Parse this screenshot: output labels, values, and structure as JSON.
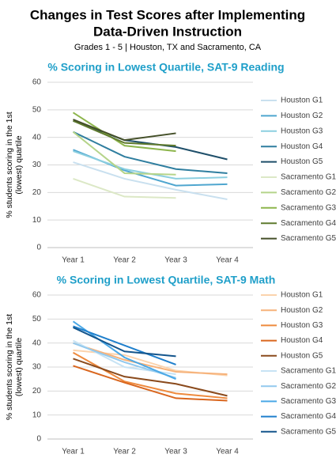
{
  "title": [
    "Changes in Test Scores after Implementing",
    "Data-Driven Instruction"
  ],
  "subtitle": "Grades 1 - 5 | Houston, TX and Sacramento, CA",
  "chart_data": [
    {
      "type": "line",
      "title": "% Scoring in Lowest Quartile, SAT-9 Reading",
      "y_label": [
        "% students scoring in the 1st",
        "(lowest) quartile"
      ],
      "categories": [
        "Year 1",
        "Year 2",
        "Year 3",
        "Year 4"
      ],
      "ylim": [
        0,
        60
      ],
      "yticks": [
        0,
        10,
        20,
        30,
        40,
        50,
        60
      ],
      "grid": true,
      "legend": "right",
      "series": [
        {
          "name": "Houston G1",
          "color": "#c9e0ef",
          "values": [
            31,
            25,
            21,
            17.5
          ]
        },
        {
          "name": "Houston G2",
          "color": "#4fa6cf",
          "values": [
            35.5,
            28,
            22.5,
            23
          ]
        },
        {
          "name": "Houston G3",
          "color": "#8ccfe0",
          "values": [
            35,
            28.5,
            25,
            25.5
          ]
        },
        {
          "name": "Houston G4",
          "color": "#2f7e9f",
          "values": [
            42,
            33,
            28.5,
            27
          ]
        },
        {
          "name": "Houston G5",
          "color": "#1f4f6a",
          "values": [
            46,
            39,
            36.5,
            32
          ]
        },
        {
          "name": "Sacramento G1",
          "color": "#dce8c6",
          "values": [
            25,
            18.5,
            18,
            null
          ]
        },
        {
          "name": "Sacramento G2",
          "color": "#b5d48a",
          "values": [
            42,
            27,
            26.5,
            null
          ]
        },
        {
          "name": "Sacramento G3",
          "color": "#8db54c",
          "values": [
            49,
            37,
            35,
            null
          ]
        },
        {
          "name": "Sacramento G4",
          "color": "#5f7a2e",
          "values": [
            46,
            38,
            37,
            null
          ]
        },
        {
          "name": "Sacramento G5",
          "color": "#444f28",
          "values": [
            46.5,
            39,
            41.5,
            null
          ]
        }
      ]
    },
    {
      "type": "line",
      "title": "% Scoring in Lowest Quartile, SAT-9 Math",
      "y_label": [
        "% students scoring in the 1st",
        "(lowest) quartile"
      ],
      "categories": [
        "Year 1",
        "Year 2",
        "Year 3",
        "Year 4"
      ],
      "ylim": [
        0,
        60
      ],
      "yticks": [
        0,
        10,
        20,
        30,
        40,
        50,
        60
      ],
      "grid": true,
      "legend": "right",
      "series": [
        {
          "name": "Houston G1",
          "color": "#fbd3ad",
          "values": [
            37,
            35,
            28.5,
            26.5
          ]
        },
        {
          "name": "Houston G2",
          "color": "#f6b27a",
          "values": [
            40,
            33,
            28,
            27
          ]
        },
        {
          "name": "Houston G3",
          "color": "#ee8a3e",
          "values": [
            36,
            24,
            19,
            17
          ]
        },
        {
          "name": "Houston G4",
          "color": "#d9661e",
          "values": [
            30.5,
            23.5,
            17,
            16
          ]
        },
        {
          "name": "Houston G5",
          "color": "#8a4a1c",
          "values": [
            33.5,
            26,
            23,
            18
          ]
        },
        {
          "name": "Sacramento G1",
          "color": "#c7e3f4",
          "values": [
            41,
            30,
            27,
            null
          ]
        },
        {
          "name": "Sacramento G2",
          "color": "#92c9ee",
          "values": [
            40,
            32,
            25.5,
            null
          ]
        },
        {
          "name": "Sacramento G3",
          "color": "#4aa8e6",
          "values": [
            49,
            34,
            25,
            null
          ]
        },
        {
          "name": "Sacramento G4",
          "color": "#1f7fcc",
          "values": [
            47,
            39,
            31,
            null
          ]
        },
        {
          "name": "Sacramento G5",
          "color": "#14558c",
          "values": [
            46.5,
            36.5,
            34.5,
            null
          ]
        }
      ]
    }
  ]
}
